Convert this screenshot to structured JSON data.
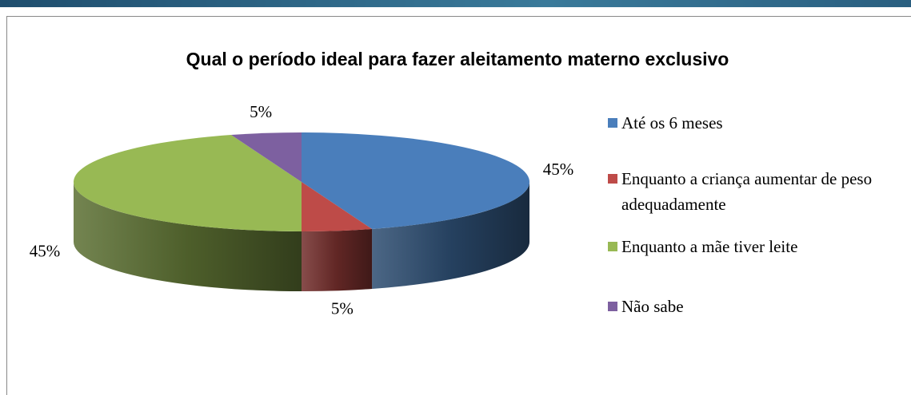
{
  "chart_data": {
    "type": "pie",
    "three_d": true,
    "title": "Qual o período ideal para fazer aleitamento materno exclusivo",
    "categories": [
      "Até os 6 meses",
      "Enquanto a criança aumentar de peso adequadamente",
      "Enquanto a mãe tiver leite",
      "Não sabe"
    ],
    "values": [
      45,
      5,
      45,
      5
    ],
    "value_labels": [
      "45%",
      "5%",
      "45%",
      "5%"
    ],
    "colors": [
      "#4a7ebb",
      "#be4b48",
      "#98b954",
      "#7d60a0"
    ],
    "legend": "right"
  }
}
